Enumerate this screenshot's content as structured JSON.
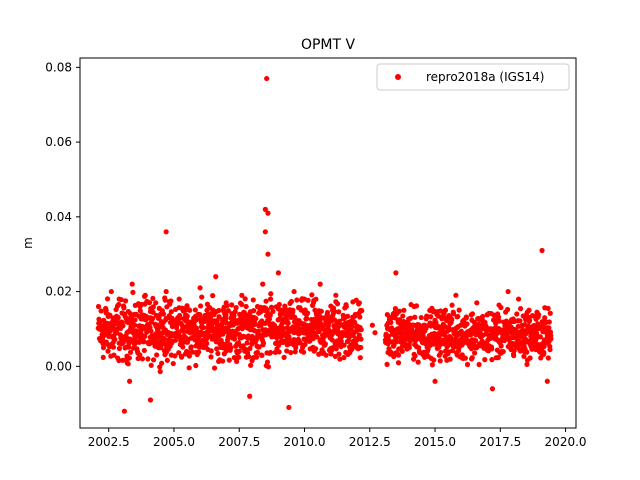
{
  "chart_data": {
    "type": "scatter",
    "title": "OPMT V",
    "xlabel": "",
    "ylabel": "m",
    "xlim": [
      2001.4,
      2020.4
    ],
    "ylim": [
      -0.0165,
      0.0825
    ],
    "xticks": [
      2002.5,
      2005.0,
      2007.5,
      2010.0,
      2012.5,
      2015.0,
      2017.5,
      2020.0
    ],
    "xtick_labels": [
      "2002.5",
      "2005.0",
      "2007.5",
      "2010.0",
      "2012.5",
      "2015.0",
      "2017.5",
      "2020.0"
    ],
    "yticks": [
      0.0,
      0.02,
      0.04,
      0.06,
      0.08
    ],
    "ytick_labels": [
      "0.00",
      "0.02",
      "0.04",
      "0.06",
      "0.08"
    ],
    "grid": false,
    "legend": {
      "placement": "top-right",
      "entries": [
        "repro2018a (IGS14)"
      ]
    },
    "series": [
      {
        "name": "repro2018a (IGS14)",
        "color": "#ff0000",
        "marker": "circle",
        "points": [
          [
            2002.2,
            0.01
          ],
          [
            2002.3,
            0.005
          ],
          [
            2002.4,
            0.015
          ],
          [
            2002.5,
            0.008
          ],
          [
            2002.6,
            0.02
          ],
          [
            2002.7,
            0.003
          ],
          [
            2002.8,
            0.012
          ],
          [
            2002.9,
            0.018
          ],
          [
            2003.0,
            0.006
          ],
          [
            2003.1,
            0.014
          ],
          [
            2003.2,
            0.009
          ],
          [
            2003.3,
            -0.004
          ],
          [
            2003.1,
            -0.012
          ],
          [
            2003.4,
            0.022
          ],
          [
            2003.5,
            0.011
          ],
          [
            2003.6,
            0.004
          ],
          [
            2003.7,
            0.016
          ],
          [
            2003.8,
            0.007
          ],
          [
            2003.9,
            0.019
          ],
          [
            2004.0,
            0.002
          ],
          [
            2004.1,
            0.013
          ],
          [
            2004.2,
            0.008
          ],
          [
            2004.1,
            -0.009
          ],
          [
            2004.3,
            0.017
          ],
          [
            2004.4,
            0.01
          ],
          [
            2004.5,
            0.005
          ],
          [
            2004.6,
            0.014
          ],
          [
            2004.7,
            0.02
          ],
          [
            2004.7,
            0.036
          ],
          [
            2004.8,
            0.009
          ],
          [
            2004.9,
            0.003
          ],
          [
            2005.0,
            0.012
          ],
          [
            2005.2,
            0.018
          ],
          [
            2005.4,
            0.007
          ],
          [
            2005.6,
            0.015
          ],
          [
            2005.8,
            0.01
          ],
          [
            2006.0,
            0.021
          ],
          [
            2006.2,
            0.006
          ],
          [
            2006.4,
            0.014
          ],
          [
            2006.6,
            0.024
          ],
          [
            2006.8,
            0.009
          ],
          [
            2007.0,
            0.017
          ],
          [
            2007.2,
            0.011
          ],
          [
            2007.4,
            0.004
          ],
          [
            2007.6,
            0.019
          ],
          [
            2007.8,
            0.013
          ],
          [
            2007.9,
            -0.008
          ],
          [
            2008.0,
            0.008
          ],
          [
            2008.2,
            0.016
          ],
          [
            2008.4,
            0.022
          ],
          [
            2008.5,
            0.042
          ],
          [
            2008.6,
            0.041
          ],
          [
            2008.55,
            0.077
          ],
          [
            2008.5,
            0.036
          ],
          [
            2008.6,
            0.03
          ],
          [
            2008.7,
            0.018
          ],
          [
            2008.8,
            0.01
          ],
          [
            2009.0,
            0.025
          ],
          [
            2009.2,
            0.015
          ],
          [
            2009.4,
            0.008
          ],
          [
            2009.4,
            -0.011
          ],
          [
            2009.6,
            0.02
          ],
          [
            2009.8,
            0.012
          ],
          [
            2010.0,
            0.018
          ],
          [
            2010.2,
            0.009
          ],
          [
            2010.4,
            0.015
          ],
          [
            2010.6,
            0.022
          ],
          [
            2010.8,
            0.006
          ],
          [
            2011.0,
            0.013
          ],
          [
            2011.2,
            0.019
          ],
          [
            2011.4,
            0.008
          ],
          [
            2011.6,
            0.016
          ],
          [
            2011.8,
            0.011
          ],
          [
            2012.0,
            0.005
          ],
          [
            2012.1,
            0.017
          ],
          [
            2012.6,
            0.011
          ],
          [
            2012.7,
            0.009
          ],
          [
            2013.2,
            0.006
          ],
          [
            2013.4,
            0.014
          ],
          [
            2013.5,
            0.025
          ],
          [
            2013.6,
            0.003
          ],
          [
            2013.8,
            0.012
          ],
          [
            2014.0,
            0.008
          ],
          [
            2014.2,
            0.016
          ],
          [
            2014.4,
            0.004
          ],
          [
            2014.6,
            0.011
          ],
          [
            2014.8,
            0.007
          ],
          [
            2015.0,
            -0.004
          ],
          [
            2015.2,
            0.01
          ],
          [
            2015.4,
            0.015
          ],
          [
            2015.6,
            0.006
          ],
          [
            2015.8,
            0.019
          ],
          [
            2016.0,
            0.009
          ],
          [
            2016.2,
            0.013
          ],
          [
            2016.4,
            0.002
          ],
          [
            2016.6,
            0.017
          ],
          [
            2016.8,
            0.01
          ],
          [
            2017.0,
            0.005
          ],
          [
            2017.2,
            -0.006
          ],
          [
            2017.4,
            0.014
          ],
          [
            2017.6,
            0.008
          ],
          [
            2017.8,
            0.02
          ],
          [
            2018.0,
            0.012
          ],
          [
            2018.2,
            0.018
          ],
          [
            2018.4,
            0.006
          ],
          [
            2018.6,
            0.015
          ],
          [
            2018.8,
            0.009
          ],
          [
            2019.0,
            0.004
          ],
          [
            2019.1,
            0.031
          ],
          [
            2019.2,
            0.013
          ],
          [
            2019.3,
            -0.004
          ],
          [
            2019.4,
            0.008
          ]
        ],
        "dense_bands": [
          {
            "x": [
              2002.1,
              2012.2
            ],
            "y": [
              -0.002,
              0.021
            ]
          },
          {
            "x": [
              2013.1,
              2019.45
            ],
            "y": [
              -0.001,
              0.018
            ]
          }
        ]
      }
    ]
  }
}
